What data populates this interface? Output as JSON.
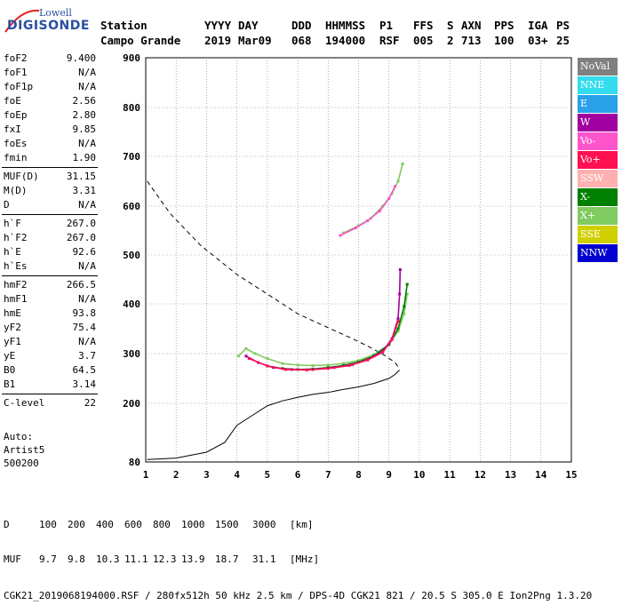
{
  "logo": {
    "top": "Lowell",
    "bottom": "DIGISONDE"
  },
  "header": {
    "labels": [
      "Station",
      "YYYY",
      "DAY",
      "DDD",
      "HHMMSS",
      "P1",
      "FFS",
      "S",
      "AXN",
      "PPS",
      "IGA",
      "PS"
    ],
    "values": [
      "Campo Grande",
      "2019",
      "Mar09",
      "068",
      "194000",
      "RSF",
      "005",
      "2",
      "713",
      "100",
      "03+",
      "25"
    ]
  },
  "params": [
    [
      {
        "n": "foF2",
        "v": "9.400"
      },
      {
        "n": "foF1",
        "v": "N/A"
      },
      {
        "n": "foF1p",
        "v": "N/A"
      },
      {
        "n": "foE",
        "v": "2.56"
      },
      {
        "n": "foEp",
        "v": "2.80"
      },
      {
        "n": "fxI",
        "v": "9.85"
      },
      {
        "n": "foEs",
        "v": "N/A"
      },
      {
        "n": "fmin",
        "v": "1.90"
      }
    ],
    [
      {
        "n": "MUF(D)",
        "v": "31.15"
      },
      {
        "n": "M(D)",
        "v": "3.31"
      },
      {
        "n": "D",
        "v": "N/A"
      }
    ],
    [
      {
        "n": "h`F",
        "v": "267.0"
      },
      {
        "n": "h`F2",
        "v": "267.0"
      },
      {
        "n": "h`E",
        "v": "92.6"
      },
      {
        "n": "h`Es",
        "v": "N/A"
      }
    ],
    [
      {
        "n": "hmF2",
        "v": "266.5"
      },
      {
        "n": "hmF1",
        "v": "N/A"
      },
      {
        "n": "hmE",
        "v": "93.8"
      },
      {
        "n": "yF2",
        "v": "75.4"
      },
      {
        "n": "yF1",
        "v": "N/A"
      },
      {
        "n": "yE",
        "v": "3.7"
      },
      {
        "n": "B0",
        "v": "64.5"
      },
      {
        "n": "B1",
        "v": "3.14"
      }
    ],
    [
      {
        "n": "C-level",
        "v": "22"
      }
    ]
  ],
  "auto": {
    "line1": "Auto:",
    "line2": "Artist5",
    "line3": "500200"
  },
  "legend": [
    {
      "label": "NoVal",
      "color": "#808080"
    },
    {
      "label": "NNE",
      "color": "#33ddee"
    },
    {
      "label": "E",
      "color": "#2aa0e8"
    },
    {
      "label": "W",
      "color": "#a000a0"
    },
    {
      "label": "Vo-",
      "color": "#ff55cc"
    },
    {
      "label": "Vo+",
      "color": "#ff1050"
    },
    {
      "label": "SSW",
      "color": "#ffb0b0"
    },
    {
      "label": "X-",
      "color": "#008000"
    },
    {
      "label": "X+",
      "color": "#80cc60"
    },
    {
      "label": "SSE",
      "color": "#d0d000"
    },
    {
      "label": "NNW",
      "color": "#0000d0"
    }
  ],
  "bottom": {
    "row1_label": "D",
    "row1": [
      "100",
      "200",
      "400",
      "600",
      "800",
      "1000",
      "1500",
      "3000",
      "[km]"
    ],
    "row2_label": "MUF",
    "row2": [
      "9.7",
      "9.8",
      "10.3",
      "11.1",
      "12.3",
      "13.9",
      "18.7",
      "31.1",
      "[MHz]"
    ],
    "footer": "CGK21_2019068194000.RSF / 280fx512h 50 kHz 2.5 km / DPS-4D CGK21 821 / 20.5 S 305.0 E Ion2Png 1.3.20"
  },
  "chart_data": {
    "type": "scatter",
    "xlim": [
      1,
      15
    ],
    "ylim": [
      80,
      900
    ],
    "x_ticks": [
      "1",
      "2",
      "3",
      "4",
      "5",
      "6",
      "7",
      "8",
      "9",
      "10",
      "11",
      "12",
      "13",
      "14",
      "15"
    ],
    "y_ticks": [
      "80",
      "200",
      "300",
      "400",
      "500",
      "600",
      "700",
      "800",
      "900"
    ],
    "grid": "dotted",
    "series": [
      {
        "name": "X+",
        "color": "#80cc60",
        "points": [
          [
            4.05,
            295
          ],
          [
            4.3,
            310
          ],
          [
            4.6,
            300
          ],
          [
            5.0,
            290
          ],
          [
            5.5,
            280
          ],
          [
            6.0,
            277
          ],
          [
            6.5,
            276
          ],
          [
            7.0,
            277
          ],
          [
            7.5,
            280
          ],
          [
            8.0,
            286
          ],
          [
            8.5,
            298
          ],
          [
            9.0,
            318
          ],
          [
            9.3,
            345
          ],
          [
            9.5,
            380
          ],
          [
            9.6,
            420
          ]
        ]
      },
      {
        "name": "X-",
        "color": "#008000",
        "points": [
          [
            5.0,
            275
          ],
          [
            5.5,
            270
          ],
          [
            6.0,
            268
          ],
          [
            6.5,
            269
          ],
          [
            7.0,
            272
          ],
          [
            7.5,
            276
          ],
          [
            8.0,
            283
          ],
          [
            8.5,
            295
          ],
          [
            9.0,
            318
          ],
          [
            9.3,
            350
          ],
          [
            9.5,
            395
          ],
          [
            9.6,
            440
          ]
        ]
      },
      {
        "name": "W",
        "color": "#a000a0",
        "points": [
          [
            4.3,
            295
          ],
          [
            4.7,
            282
          ],
          [
            5.2,
            272
          ],
          [
            5.8,
            268
          ],
          [
            6.5,
            268
          ],
          [
            7.2,
            272
          ],
          [
            7.8,
            278
          ],
          [
            8.3,
            288
          ],
          [
            8.8,
            305
          ],
          [
            9.1,
            330
          ],
          [
            9.3,
            370
          ],
          [
            9.35,
            420
          ],
          [
            9.37,
            470
          ]
        ]
      },
      {
        "name": "Vo+",
        "color": "#ff1050",
        "points": [
          [
            4.4,
            290
          ],
          [
            5.0,
            275
          ],
          [
            5.6,
            268
          ],
          [
            6.3,
            267
          ],
          [
            7.0,
            270
          ],
          [
            7.7,
            276
          ],
          [
            8.3,
            287
          ],
          [
            8.8,
            303
          ],
          [
            9.1,
            328
          ],
          [
            9.3,
            365
          ]
        ]
      },
      {
        "name": "X+ (upper)",
        "color": "#80cc60",
        "points": [
          [
            7.5,
            545
          ],
          [
            8.0,
            560
          ],
          [
            8.4,
            575
          ],
          [
            8.8,
            600
          ],
          [
            9.1,
            625
          ],
          [
            9.3,
            650
          ],
          [
            9.45,
            685
          ]
        ]
      },
      {
        "name": "Vo- (upper)",
        "color": "#ff55cc",
        "points": [
          [
            7.4,
            540
          ],
          [
            7.9,
            555
          ],
          [
            8.3,
            570
          ],
          [
            8.7,
            590
          ],
          [
            9.0,
            615
          ],
          [
            9.2,
            640
          ]
        ]
      }
    ],
    "profile": [
      [
        1.05,
        85
      ],
      [
        2.0,
        88
      ],
      [
        3.0,
        100
      ],
      [
        3.6,
        120
      ],
      [
        4.0,
        155
      ],
      [
        4.5,
        175
      ],
      [
        5.0,
        195
      ],
      [
        5.5,
        205
      ],
      [
        6.0,
        212
      ],
      [
        6.5,
        218
      ],
      [
        7.0,
        222
      ],
      [
        7.5,
        228
      ],
      [
        8.0,
        233
      ],
      [
        8.5,
        240
      ],
      [
        9.0,
        250
      ],
      [
        9.2,
        258
      ],
      [
        9.35,
        267
      ]
    ],
    "muf_curve": [
      [
        1.05,
        650
      ],
      [
        1.8,
        585
      ],
      [
        2.8,
        520
      ],
      [
        4.0,
        460
      ],
      [
        5.0,
        420
      ],
      [
        6.0,
        380
      ],
      [
        7.0,
        352
      ],
      [
        7.8,
        330
      ],
      [
        8.4,
        312
      ],
      [
        8.9,
        295
      ],
      [
        9.2,
        282
      ],
      [
        9.35,
        270
      ]
    ]
  }
}
